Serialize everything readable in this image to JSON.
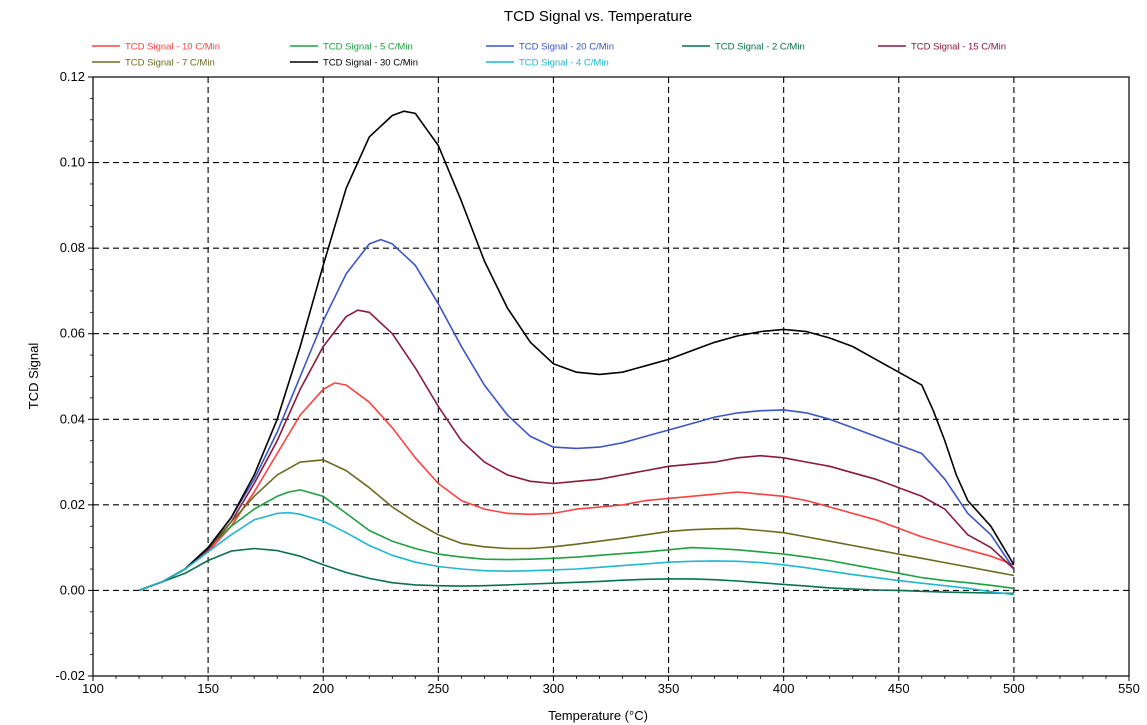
{
  "chart_data": {
    "type": "line",
    "title": "TCD Signal vs. Temperature",
    "xlabel": "Temperature (°C)",
    "ylabel": "TCD Signal",
    "xlim": [
      100,
      550
    ],
    "ylim": [
      -0.02,
      0.12
    ],
    "xticks": [
      "100",
      "150",
      "200",
      "250",
      "300",
      "350",
      "400",
      "450",
      "500",
      "550"
    ],
    "yticks": [
      "-0.02",
      "0.00",
      "0.02",
      "0.04",
      "0.06",
      "0.08",
      "0.10",
      "0.12"
    ],
    "grid": true,
    "legend_position": "top",
    "series": [
      {
        "name": "TCD Signal - 10 C/Min",
        "color": "#ff4040",
        "x": [
          120,
          130,
          140,
          150,
          160,
          170,
          180,
          190,
          200,
          205,
          210,
          220,
          230,
          240,
          250,
          260,
          270,
          280,
          290,
          300,
          310,
          320,
          330,
          340,
          350,
          360,
          370,
          380,
          390,
          400,
          410,
          420,
          430,
          440,
          450,
          460,
          470,
          480,
          490,
          500
        ],
        "y": [
          0.0,
          0.002,
          0.005,
          0.009,
          0.015,
          0.023,
          0.032,
          0.041,
          0.047,
          0.0485,
          0.048,
          0.044,
          0.038,
          0.031,
          0.025,
          0.021,
          0.019,
          0.018,
          0.0178,
          0.018,
          0.019,
          0.0195,
          0.02,
          0.021,
          0.0215,
          0.022,
          0.0225,
          0.023,
          0.0225,
          0.022,
          0.021,
          0.0195,
          0.018,
          0.0165,
          0.0145,
          0.0125,
          0.011,
          0.0095,
          0.008,
          0.006
        ]
      },
      {
        "name": "TCD Signal - 5 C/Min",
        "color": "#20a040",
        "x": [
          120,
          130,
          140,
          150,
          160,
          170,
          180,
          185,
          190,
          200,
          210,
          220,
          230,
          240,
          250,
          260,
          270,
          280,
          290,
          300,
          310,
          320,
          330,
          340,
          350,
          360,
          370,
          380,
          390,
          400,
          410,
          420,
          430,
          440,
          450,
          460,
          470,
          480,
          490,
          500
        ],
        "y": [
          0.0,
          0.002,
          0.005,
          0.01,
          0.015,
          0.019,
          0.022,
          0.023,
          0.0235,
          0.022,
          0.018,
          0.014,
          0.0115,
          0.0098,
          0.0085,
          0.0078,
          0.0073,
          0.0072,
          0.0073,
          0.0075,
          0.0078,
          0.0082,
          0.0086,
          0.009,
          0.0095,
          0.01,
          0.0098,
          0.0095,
          0.009,
          0.0085,
          0.0078,
          0.007,
          0.006,
          0.005,
          0.004,
          0.003,
          0.0023,
          0.0018,
          0.0012,
          0.0005
        ]
      },
      {
        "name": "TCD Signal - 20 C/Min",
        "color": "#3b55c8",
        "x": [
          120,
          130,
          140,
          150,
          160,
          170,
          180,
          190,
          200,
          210,
          220,
          225,
          230,
          240,
          250,
          260,
          270,
          280,
          290,
          300,
          310,
          320,
          330,
          340,
          350,
          360,
          370,
          380,
          390,
          400,
          410,
          420,
          430,
          440,
          450,
          460,
          465,
          470,
          475,
          480,
          490,
          500
        ],
        "y": [
          0.0,
          0.002,
          0.005,
          0.01,
          0.017,
          0.026,
          0.037,
          0.05,
          0.063,
          0.074,
          0.081,
          0.082,
          0.081,
          0.076,
          0.067,
          0.057,
          0.048,
          0.041,
          0.036,
          0.0335,
          0.0332,
          0.0335,
          0.0345,
          0.036,
          0.0375,
          0.039,
          0.0405,
          0.0415,
          0.042,
          0.0422,
          0.0415,
          0.04,
          0.038,
          0.036,
          0.034,
          0.032,
          0.029,
          0.026,
          0.022,
          0.018,
          0.013,
          0.005
        ]
      },
      {
        "name": "TCD Signal - 2 C/Min",
        "color": "#0a7050",
        "x": [
          120,
          130,
          140,
          150,
          160,
          170,
          180,
          190,
          200,
          210,
          220,
          230,
          240,
          250,
          260,
          270,
          280,
          290,
          300,
          310,
          320,
          330,
          340,
          350,
          360,
          370,
          380,
          390,
          400,
          410,
          420,
          430,
          440,
          450,
          460,
          470,
          480,
          490,
          500
        ],
        "y": [
          0.0,
          0.002,
          0.004,
          0.007,
          0.0092,
          0.0098,
          0.0093,
          0.008,
          0.006,
          0.0042,
          0.0028,
          0.0018,
          0.0013,
          0.0011,
          0.001,
          0.0011,
          0.0013,
          0.0015,
          0.0017,
          0.0019,
          0.0021,
          0.0024,
          0.0026,
          0.0027,
          0.0027,
          0.0025,
          0.0022,
          0.0018,
          0.0014,
          0.001,
          0.0006,
          0.0003,
          0.0001,
          0.0,
          -0.0002,
          -0.0004,
          -0.0005,
          -0.0006,
          -0.0007
        ]
      },
      {
        "name": "TCD Signal - 15 C/Min",
        "color": "#8b1a3a",
        "x": [
          120,
          130,
          140,
          150,
          160,
          170,
          180,
          190,
          200,
          210,
          215,
          220,
          230,
          240,
          250,
          260,
          270,
          280,
          290,
          300,
          310,
          320,
          330,
          340,
          350,
          360,
          370,
          380,
          390,
          400,
          410,
          420,
          430,
          440,
          450,
          460,
          470,
          475,
          480,
          490,
          500
        ],
        "y": [
          0.0,
          0.002,
          0.005,
          0.0095,
          0.016,
          0.025,
          0.035,
          0.047,
          0.057,
          0.064,
          0.0655,
          0.065,
          0.06,
          0.052,
          0.043,
          0.035,
          0.03,
          0.027,
          0.0255,
          0.025,
          0.0255,
          0.026,
          0.027,
          0.028,
          0.029,
          0.0295,
          0.03,
          0.031,
          0.0315,
          0.031,
          0.03,
          0.029,
          0.0275,
          0.026,
          0.024,
          0.022,
          0.019,
          0.016,
          0.013,
          0.01,
          0.005
        ]
      },
      {
        "name": "TCD Signal - 7 C/Min",
        "color": "#6b6b20",
        "x": [
          120,
          130,
          140,
          150,
          160,
          170,
          180,
          190,
          200,
          210,
          220,
          230,
          240,
          250,
          260,
          270,
          280,
          290,
          300,
          310,
          320,
          330,
          340,
          350,
          360,
          370,
          380,
          390,
          400,
          410,
          420,
          430,
          440,
          450,
          460,
          470,
          480,
          490,
          500
        ],
        "y": [
          0.0,
          0.002,
          0.005,
          0.01,
          0.016,
          0.022,
          0.027,
          0.03,
          0.0305,
          0.028,
          0.024,
          0.0195,
          0.016,
          0.013,
          0.011,
          0.0102,
          0.0098,
          0.0098,
          0.0102,
          0.0108,
          0.0115,
          0.0122,
          0.013,
          0.0138,
          0.0142,
          0.0144,
          0.0145,
          0.014,
          0.0135,
          0.0125,
          0.0115,
          0.0105,
          0.0095,
          0.0085,
          0.0075,
          0.0065,
          0.0055,
          0.0045,
          0.0035
        ]
      },
      {
        "name": "TCD Signal - 30 C/Min",
        "color": "#000000",
        "x": [
          120,
          130,
          140,
          150,
          160,
          170,
          180,
          190,
          200,
          210,
          220,
          230,
          235,
          240,
          250,
          260,
          270,
          280,
          290,
          300,
          310,
          320,
          330,
          340,
          350,
          360,
          370,
          380,
          390,
          400,
          410,
          420,
          430,
          440,
          450,
          460,
          465,
          470,
          475,
          480,
          490,
          500
        ],
        "y": [
          0.0,
          0.002,
          0.005,
          0.01,
          0.017,
          0.027,
          0.04,
          0.057,
          0.076,
          0.094,
          0.106,
          0.111,
          0.112,
          0.1115,
          0.104,
          0.091,
          0.077,
          0.066,
          0.058,
          0.053,
          0.051,
          0.0505,
          0.051,
          0.0525,
          0.054,
          0.056,
          0.058,
          0.0595,
          0.0605,
          0.061,
          0.0605,
          0.059,
          0.057,
          0.054,
          0.051,
          0.048,
          0.042,
          0.035,
          0.027,
          0.021,
          0.015,
          0.006
        ]
      },
      {
        "name": "TCD Signal - 4 C/Min",
        "color": "#20b8d0",
        "x": [
          120,
          130,
          140,
          150,
          160,
          170,
          180,
          185,
          190,
          200,
          210,
          220,
          230,
          240,
          250,
          260,
          270,
          280,
          290,
          300,
          310,
          320,
          330,
          340,
          350,
          360,
          370,
          380,
          390,
          400,
          410,
          420,
          430,
          440,
          450,
          460,
          470,
          480,
          490,
          500
        ],
        "y": [
          0.0,
          0.002,
          0.005,
          0.009,
          0.013,
          0.0165,
          0.018,
          0.0182,
          0.0178,
          0.0162,
          0.0135,
          0.0105,
          0.0082,
          0.0066,
          0.0056,
          0.005,
          0.0046,
          0.0045,
          0.0046,
          0.0048,
          0.005,
          0.0054,
          0.0058,
          0.0062,
          0.0066,
          0.0068,
          0.0069,
          0.0068,
          0.0065,
          0.006,
          0.0053,
          0.0045,
          0.0037,
          0.003,
          0.0023,
          0.0017,
          0.0011,
          0.0005,
          -0.0003,
          -0.001
        ]
      }
    ]
  }
}
